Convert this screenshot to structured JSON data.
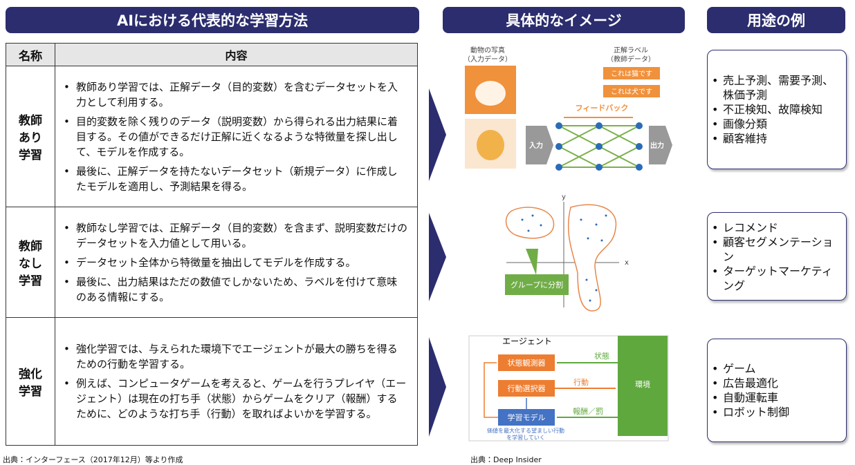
{
  "headers": {
    "left": "AIにおける代表的な学習方法",
    "middle": "具体的なイメージ",
    "right": "用途の例"
  },
  "table": {
    "columns": [
      "名称",
      "内容"
    ],
    "rows": [
      {
        "name_lines": [
          "教師",
          "あり",
          "学習"
        ],
        "bullets": [
          "教師あり学習では、正解データ（目的変数）を含むデータセットを入力として利用する。",
          "目的変数を除く残りのデータ（説明変数）から得られる出力結果に着目する。その値ができるだけ正解に近くなるような特徴量を探し出して、モデルを作成する。",
          "最後に、正解データを持たないデータセット（新規データ）に作成したモデルを適用し、予測結果を得る。"
        ]
      },
      {
        "name_lines": [
          "教師",
          "なし",
          "学習"
        ],
        "bullets": [
          "教師なし学習では、正解データ（目的変数）を含まず、説明変数だけのデータセットを入力値として用いる。",
          "データセット全体から特徴量を抽出してモデルを作成する。",
          "最後に、出力結果はただの数値でしかないため、ラベルを付けて意味のある情報にする。"
        ]
      },
      {
        "name_lines": [
          "強化",
          "学習"
        ],
        "bullets": [
          "強化学習では、与えられた環境下でエージェントが最大の勝ちを得るための行動を学習する。",
          "例えば、コンピュータゲームを考えると、ゲームを行うプレイヤ（エージェント）は現在の打ち手（状態）からゲームをクリア（報酬）するために、どのような打ち手（行動）を取ればよいかを学習する。"
        ]
      }
    ]
  },
  "uses": [
    [
      "売上予測、需要予測、株価予測",
      "不正検知、故障検知",
      "画像分類",
      "顧客維持"
    ],
    [
      "レコメンド",
      "顧客セグメンテーション",
      "ターゲットマーケティング"
    ],
    [
      "ゲーム",
      "広告最適化",
      "自動運転車",
      "ロボット制御"
    ]
  ],
  "diagrams": {
    "supervised": {
      "input_label": [
        "動物の写真",
        "（入力データ）"
      ],
      "answer_label": [
        "正解ラベル",
        "（教師データ）"
      ],
      "answers": [
        "これは猫です",
        "これは犬です"
      ],
      "feedback": "フィードバック",
      "input": "入力",
      "output": "出力"
    },
    "unsupervised": {
      "y_axis": "y",
      "x_axis": "x",
      "group": "グループに分割"
    },
    "reinforcement": {
      "agent": "エージェント",
      "observer": "状態観測器",
      "selector": "行動選択器",
      "model": "学習モデル",
      "state": "状態",
      "action": "行動",
      "reward": "報酬／罰",
      "environment": "環境",
      "note": [
        "価値を最大化する望ましい行動",
        "を学習していく"
      ]
    }
  },
  "sources": {
    "left": "出典：インターフェース（2017年12月）等より作成",
    "middle": "出典：Deep Insider"
  }
}
